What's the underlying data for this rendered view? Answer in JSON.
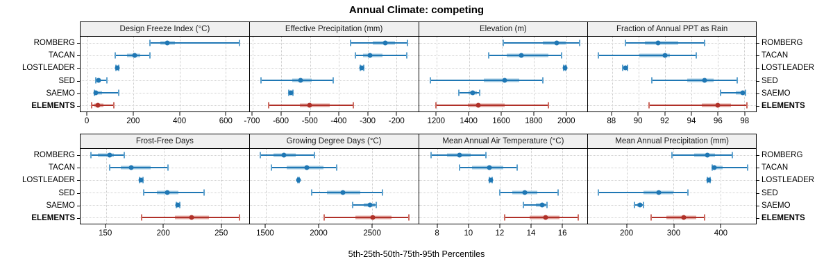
{
  "title": "Annual Climate: competing",
  "xlabel": "5th-25th-50th-75th-95th Percentiles",
  "sites": [
    "ROMBERG",
    "TACAN",
    "LOSTLEADER",
    "SED",
    "SAEMO",
    "ELEMENTS"
  ],
  "emphasized_site": "ELEMENTS",
  "colors": {
    "site_main": "#1F77B4",
    "site_band": "#9DC7E0",
    "site_cap": "#5FA2CE",
    "elements_main": "#B03028",
    "elements_band": "#DFA09A",
    "elements_cap": "#CC6B61",
    "grid_line": "#c9c9c9",
    "strip_bg": "#F0F0F0",
    "panel_border": "#000000"
  },
  "chart_data": {
    "type": "dotplot-percentiles",
    "percentiles": [
      5,
      25,
      50,
      75,
      95
    ],
    "layout": {
      "rows": 2,
      "cols": 4
    },
    "legend_note": "blue = comparison sites, dark red bold = ELEMENTS",
    "panels": [
      {
        "id": "design-freeze-index",
        "title": "Design Freeze Index (°C)",
        "xlim": [
          -30,
          700
        ],
        "ticks": [
          0,
          200,
          400,
          600
        ],
        "tick_labels": [
          "0",
          "200",
          "400",
          "600"
        ],
        "series": [
          {
            "site": "ROMBERG",
            "values": [
              270,
              315,
              345,
              380,
              660
            ]
          },
          {
            "site": "TACAN",
            "values": [
              120,
              170,
              205,
              228,
              270
            ]
          },
          {
            "site": "LOSTLEADER",
            "values": [
              123,
              127,
              129,
              131,
              134
            ]
          },
          {
            "site": "SED",
            "values": [
              36,
              42,
              47,
              56,
              85
            ]
          },
          {
            "site": "SAEMO",
            "values": [
              29,
              32,
              35,
              62,
              135
            ]
          },
          {
            "site": "ELEMENTS",
            "values": [
              18,
              30,
              44,
              70,
              115
            ]
          }
        ]
      },
      {
        "id": "effective-precipitation",
        "title": "Effective Precipitation (mm)",
        "xlim": [
          -710,
          -125
        ],
        "ticks": [
          -700,
          -600,
          -500,
          -400,
          -300,
          -200
        ],
        "tick_labels": [
          "-700",
          "-600",
          "-500",
          "-400",
          "-300",
          "-200"
        ],
        "series": [
          {
            "site": "ROMBERG",
            "values": [
              -360,
              -282,
              -240,
              -205,
              -162
            ]
          },
          {
            "site": "TACAN",
            "values": [
              -343,
              -316,
              -292,
              -250,
              -164
            ]
          },
          {
            "site": "LOSTLEADER",
            "values": [
              -327,
              -324,
              -321,
              -318,
              -315
            ]
          },
          {
            "site": "SED",
            "values": [
              -670,
              -562,
              -533,
              -494,
              -420
            ]
          },
          {
            "site": "SAEMO",
            "values": [
              -574,
              -571,
              -568,
              -565,
              -561
            ]
          },
          {
            "site": "ELEMENTS",
            "values": [
              -645,
              -537,
              -503,
              -432,
              -350
            ]
          }
        ]
      },
      {
        "id": "elevation",
        "title": "Elevation (m)",
        "xlim": [
          1090,
          2130
        ],
        "ticks": [
          1200,
          1400,
          1600,
          1800,
          2000
        ],
        "tick_labels": [
          "1200",
          "1400",
          "1600",
          "1800",
          "2000"
        ],
        "series": [
          {
            "site": "ROMBERG",
            "values": [
              1612,
              1854,
              1940,
              1996,
              2083
            ]
          },
          {
            "site": "TACAN",
            "values": [
              1521,
              1632,
              1723,
              1888,
              1972
            ]
          },
          {
            "site": "LOSTLEADER",
            "values": [
              1984,
              1988,
              1990,
              1992,
              1995
            ]
          },
          {
            "site": "SED",
            "values": [
              1162,
              1490,
              1620,
              1710,
              1853
            ]
          },
          {
            "site": "SAEMO",
            "values": [
              1338,
              1395,
              1422,
              1446,
              1467
            ]
          },
          {
            "site": "ELEMENTS",
            "values": [
              1194,
              1390,
              1457,
              1620,
              1890
            ]
          }
        ]
      },
      {
        "id": "fraction-annual-ppt-rain",
        "title": "Fraction of Annual PPT as Rain",
        "xlim": [
          86.2,
          98.9
        ],
        "ticks": [
          88,
          90,
          92,
          94,
          96,
          98
        ],
        "tick_labels": [
          "88",
          "90",
          "92",
          "94",
          "96",
          "98"
        ],
        "series": [
          {
            "site": "ROMBERG",
            "values": [
              89.0,
              90.5,
              91.5,
              93.0,
              95.0
            ]
          },
          {
            "site": "TACAN",
            "values": [
              87.0,
              90.1,
              92.0,
              92.4,
              94.4
            ]
          },
          {
            "site": "LOSTLEADER",
            "values": [
              88.8,
              88.9,
              89.0,
              89.1,
              89.2
            ]
          },
          {
            "site": "SED",
            "values": [
              91.0,
              93.7,
              95.0,
              95.7,
              97.5
            ]
          },
          {
            "site": "SAEMO",
            "values": [
              96.2,
              97.4,
              97.9,
              98.0,
              98.1
            ]
          },
          {
            "site": "ELEMENTS",
            "values": [
              90.8,
              94.8,
              96.0,
              97.0,
              98.2
            ]
          }
        ]
      },
      {
        "id": "frost-free-days",
        "title": "Frost-Free Days",
        "xlim": [
          128,
          274
        ],
        "ticks": [
          150,
          200,
          250
        ],
        "tick_labels": [
          "150",
          "200",
          "250"
        ],
        "series": [
          {
            "site": "ROMBERG",
            "values": [
              137,
              143,
              153,
              157,
              166
            ]
          },
          {
            "site": "TACAN",
            "values": [
              153,
              163,
              172,
              189,
              204
            ]
          },
          {
            "site": "LOSTLEADER",
            "values": [
              179,
              180,
              180.5,
              181,
              182
            ]
          },
          {
            "site": "SED",
            "values": [
              183,
              194,
              203,
              213,
              235
            ]
          },
          {
            "site": "SAEMO",
            "values": [
              211,
              212,
              212.5,
              213,
              214
            ]
          },
          {
            "site": "ELEMENTS",
            "values": [
              181,
              210,
              224,
              239,
              266
            ]
          }
        ]
      },
      {
        "id": "growing-degree-days",
        "title": "Growing Degree Days (°C)",
        "xlim": [
          1350,
          2930
        ],
        "ticks": [
          1500,
          2000,
          2500
        ],
        "tick_labels": [
          "1500",
          "2000",
          "2500"
        ],
        "series": [
          {
            "site": "ROMBERG",
            "values": [
              1450,
              1576,
              1673,
              1781,
              1954
            ]
          },
          {
            "site": "TACAN",
            "values": [
              1554,
              1695,
              1885,
              2041,
              2167
            ]
          },
          {
            "site": "LOSTLEADER",
            "values": [
              1799,
              1804,
              1808,
              1812,
              1816
            ]
          },
          {
            "site": "SED",
            "values": [
              1929,
              2074,
              2221,
              2387,
              2593
            ]
          },
          {
            "site": "SAEMO",
            "values": [
              2312,
              2420,
              2478,
              2521,
              2536
            ]
          },
          {
            "site": "ELEMENTS",
            "values": [
              2045,
              2344,
              2502,
              2680,
              2842
            ]
          }
        ]
      },
      {
        "id": "mean-annual-air-temperature",
        "title": "Mean Annual Air Temperature (°C)",
        "xlim": [
          6.8,
          17.6
        ],
        "ticks": [
          8,
          10,
          12,
          14,
          16
        ],
        "tick_labels": [
          "8",
          "10",
          "12",
          "14",
          "16"
        ],
        "series": [
          {
            "site": "ROMBERG",
            "values": [
              7.6,
              8.6,
              9.4,
              10.1,
              11.1
            ]
          },
          {
            "site": "TACAN",
            "values": [
              9.4,
              10.2,
              11.3,
              12.2,
              13.1
            ]
          },
          {
            "site": "LOSTLEADER",
            "values": [
              11.3,
              11.35,
              11.4,
              11.45,
              11.5
            ]
          },
          {
            "site": "SED",
            "values": [
              12.0,
              12.8,
              13.6,
              14.4,
              15.7
            ]
          },
          {
            "site": "SAEMO",
            "values": [
              13.5,
              14.3,
              14.7,
              14.9,
              15.0
            ]
          },
          {
            "site": "ELEMENTS",
            "values": [
              12.3,
              13.9,
              14.9,
              15.8,
              17.0
            ]
          }
        ]
      },
      {
        "id": "mean-annual-precipitation",
        "title": "Mean Annual Precipitation (mm)",
        "xlim": [
          117,
          476
        ],
        "ticks": [
          200,
          300,
          400
        ],
        "tick_labels": [
          "200",
          "300",
          "400"
        ],
        "series": [
          {
            "site": "ROMBERG",
            "values": [
              296,
              344,
              372,
              388,
              425
            ]
          },
          {
            "site": "TACAN",
            "values": [
              383,
              385,
              387,
              405,
              458
            ]
          },
          {
            "site": "LOSTLEADER",
            "values": [
              372,
              374,
              375,
              376,
              378
            ]
          },
          {
            "site": "SED",
            "values": [
              139,
              236,
              268,
              300,
              331
            ]
          },
          {
            "site": "SAEMO",
            "values": [
              216,
              222,
              228,
              232,
              236
            ]
          },
          {
            "site": "ELEMENTS",
            "values": [
              252,
              285,
              322,
              349,
              366
            ]
          }
        ]
      }
    ]
  }
}
